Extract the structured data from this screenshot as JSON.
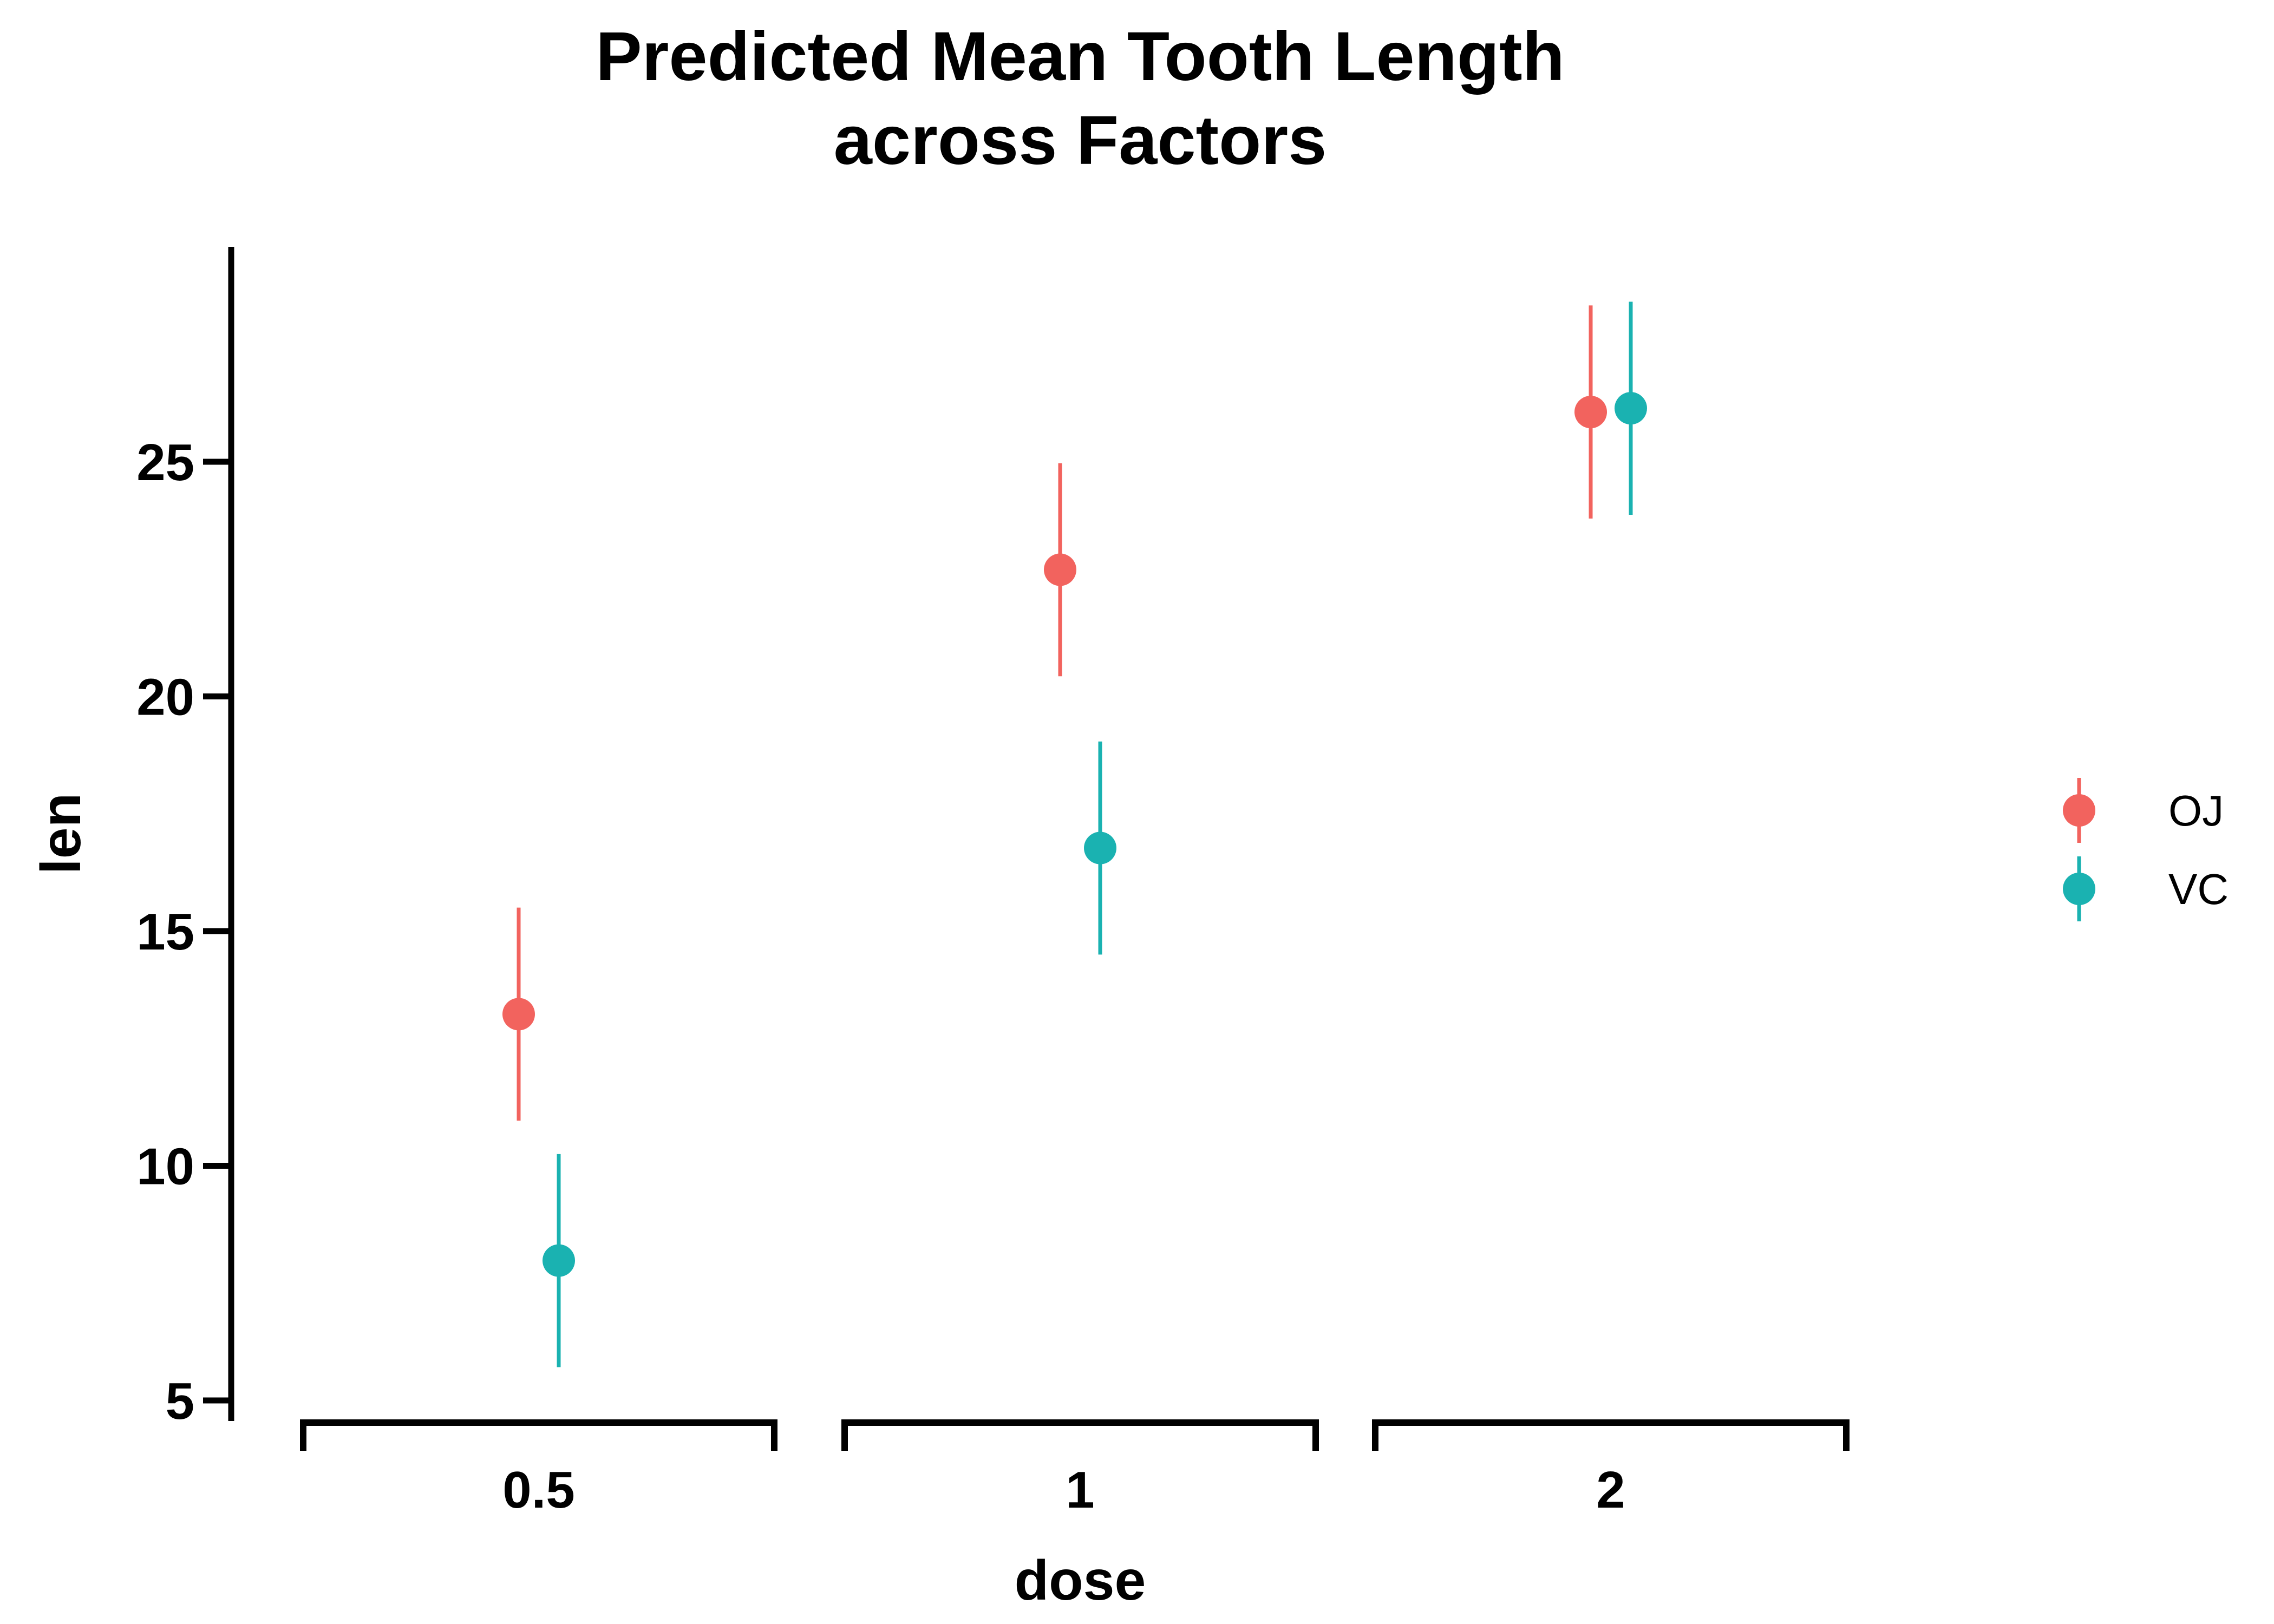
{
  "chart_data": {
    "type": "scatter",
    "title_lines": [
      "Predicted Mean Tooth Length",
      "across Factors"
    ],
    "xlabel": "dose",
    "ylabel": "len",
    "categories": [
      "0.5",
      "1",
      "2"
    ],
    "y_ticks": [
      5,
      10,
      15,
      20,
      25
    ],
    "ylim": [
      5,
      29.5
    ],
    "grid": false,
    "legend_position": "right",
    "series": [
      {
        "name": "OJ",
        "color": "#F2635E",
        "values": [
          13.23,
          22.7,
          26.06
        ],
        "lower": [
          10.96,
          20.43,
          23.79
        ],
        "upper": [
          15.5,
          24.97,
          28.33
        ]
      },
      {
        "name": "VC",
        "color": "#1AB2B1",
        "values": [
          7.98,
          16.77,
          26.14
        ],
        "lower": [
          5.71,
          14.5,
          23.87
        ],
        "upper": [
          10.25,
          19.04,
          28.41
        ]
      }
    ]
  }
}
